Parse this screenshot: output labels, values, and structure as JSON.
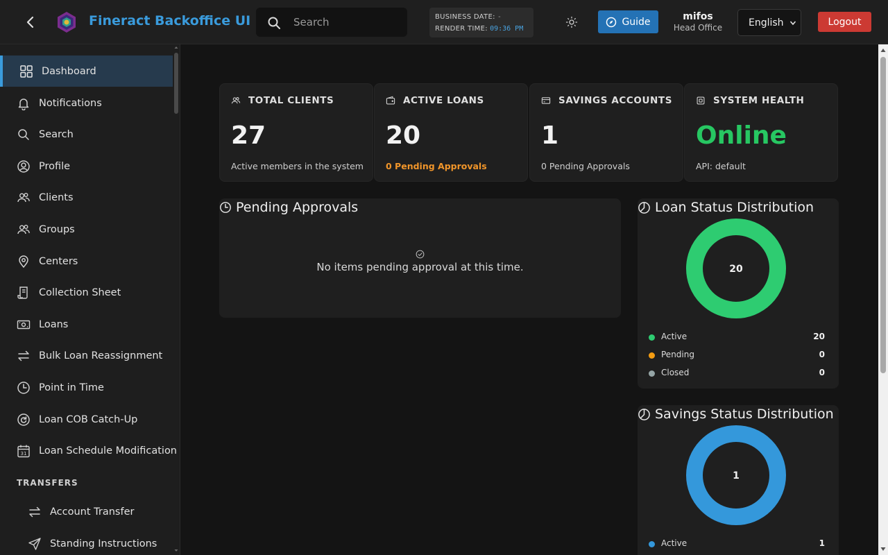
{
  "header": {
    "title": "Fineract Backoffice UI",
    "search_placeholder": "Search",
    "business_date_label": "BUSINESS DATE:",
    "business_date_value": "-",
    "render_time_label": "RENDER TIME:",
    "render_time_value": "09:36 PM",
    "guide_label": "Guide",
    "user_name": "mifos",
    "user_office": "Head Office",
    "language": "English",
    "logout_label": "Logout"
  },
  "sidebar": {
    "items": [
      {
        "label": "Dashboard",
        "icon": "grid-icon",
        "active": true
      },
      {
        "label": "Notifications",
        "icon": "bell-icon"
      },
      {
        "label": "Search",
        "icon": "search-icon"
      },
      {
        "label": "Profile",
        "icon": "user-circle-icon"
      },
      {
        "label": "Clients",
        "icon": "users-icon"
      },
      {
        "label": "Groups",
        "icon": "users-icon"
      },
      {
        "label": "Centers",
        "icon": "map-pin-icon"
      },
      {
        "label": "Collection Sheet",
        "icon": "receipt-icon"
      },
      {
        "label": "Loans",
        "icon": "cash-icon"
      },
      {
        "label": "Bulk Loan Reassignment",
        "icon": "swap-icon"
      },
      {
        "label": "Point in Time",
        "icon": "clock-icon"
      },
      {
        "label": "Loan COB Catch-Up",
        "icon": "refresh-circle-icon"
      },
      {
        "label": "Loan Schedule Modification",
        "icon": "calendar-icon"
      }
    ],
    "section_transfers": "TRANSFERS",
    "transfer_items": [
      {
        "label": "Account Transfer",
        "icon": "swap-icon"
      },
      {
        "label": "Standing Instructions",
        "icon": "send-icon"
      }
    ]
  },
  "stats": {
    "clients": {
      "title": "TOTAL CLIENTS",
      "value": "27",
      "sub": "Active members in the system"
    },
    "loans": {
      "title": "ACTIVE LOANS",
      "value": "20",
      "sub": "0 Pending Approvals"
    },
    "savings": {
      "title": "SAVINGS ACCOUNTS",
      "value": "1",
      "sub": "0 Pending Approvals"
    },
    "health": {
      "title": "SYSTEM HEALTH",
      "value": "Online",
      "sub": "API: default"
    }
  },
  "pending": {
    "title": "Pending Approvals",
    "empty_message": "No items pending approval at this time."
  },
  "loan_dist": {
    "title": "Loan Status Distribution",
    "center": "20",
    "legend": [
      {
        "name": "Active",
        "value": "20",
        "color": "#2ecc71"
      },
      {
        "name": "Pending",
        "value": "0",
        "color": "#f39c12"
      },
      {
        "name": "Closed",
        "value": "0",
        "color": "#95a5a6"
      }
    ]
  },
  "savings_dist": {
    "title": "Savings Status Distribution",
    "center": "1",
    "legend": [
      {
        "name": "Active",
        "value": "1",
        "color": "#3498db"
      }
    ]
  },
  "colors": {
    "accent": "#3a9bdc",
    "guide": "#2472b5",
    "logout": "#cc3a33",
    "online": "#27c762",
    "pending_orange": "#f0952a"
  }
}
